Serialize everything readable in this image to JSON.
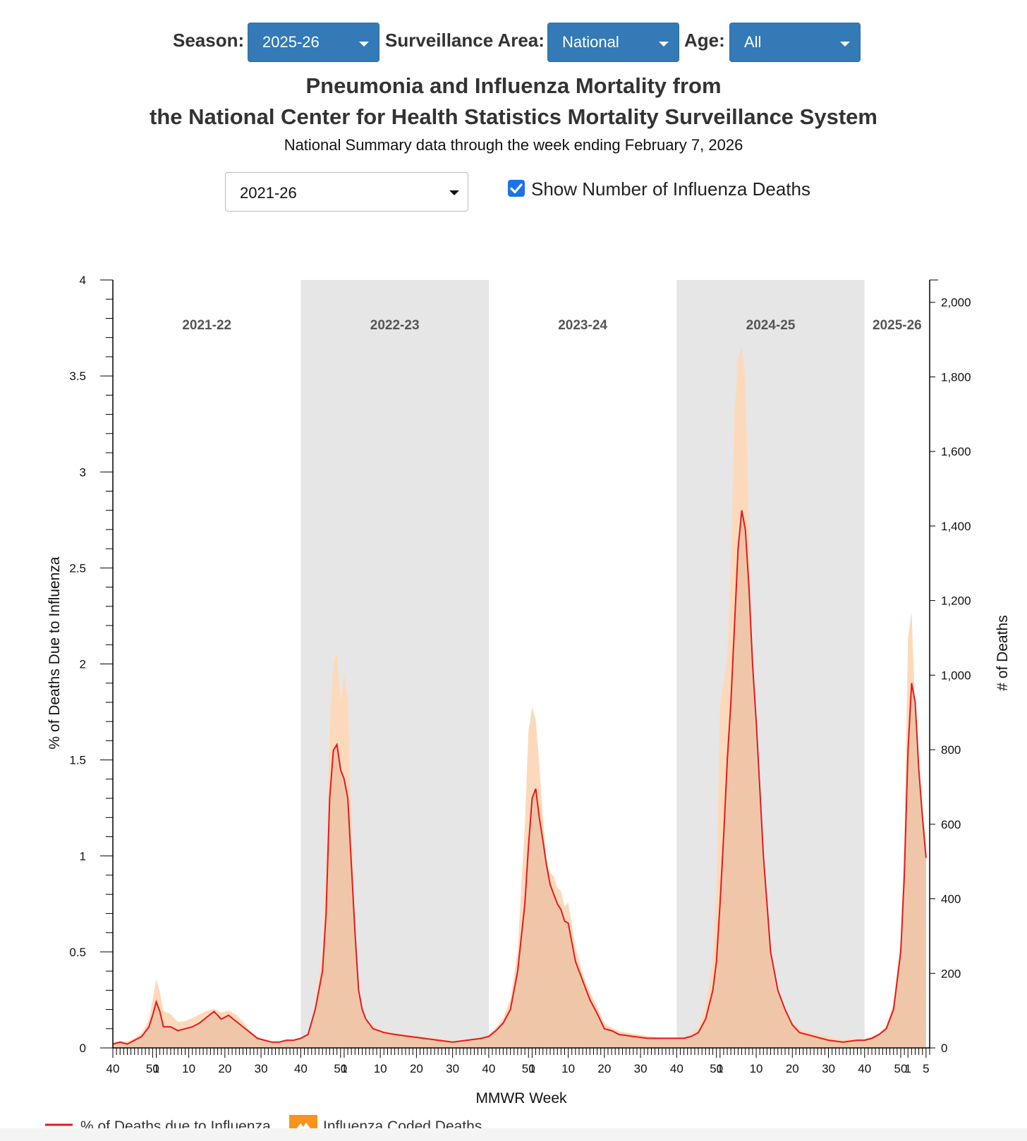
{
  "filters": {
    "season_label": "Season:",
    "season_value": "2025-26",
    "area_label": "Surveillance Area:",
    "area_value": "National",
    "age_label": "Age:",
    "age_value": "All"
  },
  "title_line1": "Pneumonia and Influenza Mortality from",
  "title_line2": "the National Center for Health Statistics Mortality Surveillance System",
  "subtitle": "National Summary data through the week ending February 7, 2026",
  "range_selector": "2021-26",
  "show_deaths_label": "Show Number of Influenza Deaths",
  "colors": {
    "dropdown": "#337ab7",
    "line": "#e41a1c",
    "area": "#fdd9bb",
    "area_dark": "#e6b79a",
    "shade": "#e6e6e6",
    "legend_area_icon": "#f7941d"
  },
  "chart_data": {
    "type": "line",
    "xlabel": "MMWR Week",
    "ylabel": "% of Deaths Due to Influenza",
    "y2label": "# of Deaths",
    "ylim": [
      0,
      4
    ],
    "y2lim": [
      0,
      2060
    ],
    "yticks": [
      "0",
      "0.5",
      "1",
      "1.5",
      "2",
      "2.5",
      "3",
      "3.5",
      "4"
    ],
    "y2ticks": [
      "0",
      "200",
      "400",
      "600",
      "800",
      "1,000",
      "1,200",
      "1,400",
      "1,600",
      "1,800",
      "2,000"
    ],
    "x_range_weeks": [
      0,
      226
    ],
    "seasons": [
      {
        "label": "2021-22",
        "start_week": 0,
        "end_week": 52,
        "shaded": false
      },
      {
        "label": "2022-23",
        "start_week": 52,
        "end_week": 104,
        "shaded": true
      },
      {
        "label": "2023-24",
        "start_week": 104,
        "end_week": 156,
        "shaded": false
      },
      {
        "label": "2024-25",
        "start_week": 156,
        "end_week": 208,
        "shaded": true
      },
      {
        "label": "2025-26",
        "start_week": 208,
        "end_week": 226,
        "shaded": false
      }
    ],
    "xticks": [
      {
        "w": 0,
        "label": "40"
      },
      {
        "w": 11,
        "label": "50"
      },
      {
        "w": 12,
        "label": "1"
      },
      {
        "w": 21,
        "label": "10"
      },
      {
        "w": 31,
        "label": "20"
      },
      {
        "w": 41,
        "label": "30"
      },
      {
        "w": 52,
        "label": "40"
      },
      {
        "w": 63,
        "label": "50"
      },
      {
        "w": 64,
        "label": "1"
      },
      {
        "w": 74,
        "label": "10"
      },
      {
        "w": 84,
        "label": "20"
      },
      {
        "w": 94,
        "label": "30"
      },
      {
        "w": 104,
        "label": "40"
      },
      {
        "w": 115,
        "label": "50"
      },
      {
        "w": 116,
        "label": "1"
      },
      {
        "w": 126,
        "label": "10"
      },
      {
        "w": 136,
        "label": "20"
      },
      {
        "w": 146,
        "label": "30"
      },
      {
        "w": 156,
        "label": "40"
      },
      {
        "w": 167,
        "label": "50"
      },
      {
        "w": 168,
        "label": "1"
      },
      {
        "w": 178,
        "label": "10"
      },
      {
        "w": 188,
        "label": "20"
      },
      {
        "w": 198,
        "label": "30"
      },
      {
        "w": 208,
        "label": "40"
      },
      {
        "w": 218,
        "label": "50"
      },
      {
        "w": 220,
        "label": "1"
      },
      {
        "w": 225,
        "label": "5"
      }
    ],
    "series": [
      {
        "name": "% of Deaths due to Influenza",
        "axis": "left",
        "points": [
          [
            0,
            0.02
          ],
          [
            2,
            0.03
          ],
          [
            4,
            0.02
          ],
          [
            6,
            0.04
          ],
          [
            8,
            0.06
          ],
          [
            10,
            0.11
          ],
          [
            11,
            0.17
          ],
          [
            12,
            0.24
          ],
          [
            13,
            0.19
          ],
          [
            14,
            0.11
          ],
          [
            16,
            0.11
          ],
          [
            18,
            0.09
          ],
          [
            20,
            0.1
          ],
          [
            22,
            0.11
          ],
          [
            24,
            0.13
          ],
          [
            26,
            0.16
          ],
          [
            28,
            0.19
          ],
          [
            30,
            0.15
          ],
          [
            32,
            0.17
          ],
          [
            34,
            0.14
          ],
          [
            36,
            0.11
          ],
          [
            38,
            0.08
          ],
          [
            40,
            0.05
          ],
          [
            42,
            0.04
          ],
          [
            44,
            0.03
          ],
          [
            46,
            0.03
          ],
          [
            48,
            0.04
          ],
          [
            50,
            0.04
          ],
          [
            52,
            0.05
          ],
          [
            54,
            0.07
          ],
          [
            56,
            0.2
          ],
          [
            58,
            0.4
          ],
          [
            59,
            0.7
          ],
          [
            60,
            1.3
          ],
          [
            61,
            1.55
          ],
          [
            62,
            1.58
          ],
          [
            63,
            1.45
          ],
          [
            64,
            1.4
          ],
          [
            65,
            1.3
          ],
          [
            66,
            0.95
          ],
          [
            67,
            0.6
          ],
          [
            68,
            0.3
          ],
          [
            69,
            0.2
          ],
          [
            70,
            0.15
          ],
          [
            72,
            0.1
          ],
          [
            75,
            0.08
          ],
          [
            78,
            0.07
          ],
          [
            82,
            0.06
          ],
          [
            86,
            0.05
          ],
          [
            90,
            0.04
          ],
          [
            94,
            0.03
          ],
          [
            98,
            0.04
          ],
          [
            102,
            0.05
          ],
          [
            104,
            0.06
          ],
          [
            106,
            0.09
          ],
          [
            108,
            0.13
          ],
          [
            110,
            0.2
          ],
          [
            112,
            0.4
          ],
          [
            114,
            0.75
          ],
          [
            115,
            1.05
          ],
          [
            116,
            1.3
          ],
          [
            117,
            1.35
          ],
          [
            118,
            1.2
          ],
          [
            119,
            1.08
          ],
          [
            120,
            0.95
          ],
          [
            121,
            0.85
          ],
          [
            122,
            0.8
          ],
          [
            123,
            0.75
          ],
          [
            124,
            0.72
          ],
          [
            125,
            0.66
          ],
          [
            126,
            0.65
          ],
          [
            128,
            0.45
          ],
          [
            130,
            0.35
          ],
          [
            132,
            0.25
          ],
          [
            134,
            0.18
          ],
          [
            136,
            0.1
          ],
          [
            138,
            0.09
          ],
          [
            140,
            0.07
          ],
          [
            144,
            0.06
          ],
          [
            148,
            0.05
          ],
          [
            152,
            0.05
          ],
          [
            156,
            0.05
          ],
          [
            158,
            0.05
          ],
          [
            160,
            0.06
          ],
          [
            162,
            0.08
          ],
          [
            164,
            0.15
          ],
          [
            166,
            0.3
          ],
          [
            167,
            0.45
          ],
          [
            168,
            0.75
          ],
          [
            169,
            1.1
          ],
          [
            170,
            1.5
          ],
          [
            171,
            1.8
          ],
          [
            172,
            2.2
          ],
          [
            173,
            2.6
          ],
          [
            174,
            2.8
          ],
          [
            175,
            2.7
          ],
          [
            176,
            2.4
          ],
          [
            177,
            2.0
          ],
          [
            178,
            1.7
          ],
          [
            179,
            1.35
          ],
          [
            180,
            1.0
          ],
          [
            181,
            0.75
          ],
          [
            182,
            0.5
          ],
          [
            184,
            0.3
          ],
          [
            186,
            0.2
          ],
          [
            188,
            0.12
          ],
          [
            190,
            0.08
          ],
          [
            194,
            0.06
          ],
          [
            198,
            0.04
          ],
          [
            202,
            0.03
          ],
          [
            206,
            0.04
          ],
          [
            208,
            0.04
          ],
          [
            210,
            0.05
          ],
          [
            212,
            0.07
          ],
          [
            214,
            0.1
          ],
          [
            216,
            0.2
          ],
          [
            218,
            0.5
          ],
          [
            219,
            0.9
          ],
          [
            220,
            1.55
          ],
          [
            221,
            1.9
          ],
          [
            222,
            1.8
          ],
          [
            223,
            1.45
          ],
          [
            224,
            1.2
          ],
          [
            225,
            0.99
          ]
        ]
      },
      {
        "name": "Influenza Coded Deaths",
        "axis": "right",
        "points": [
          [
            0,
            15
          ],
          [
            2,
            18
          ],
          [
            4,
            17
          ],
          [
            6,
            25
          ],
          [
            8,
            40
          ],
          [
            10,
            75
          ],
          [
            11,
            130
          ],
          [
            12,
            185
          ],
          [
            13,
            150
          ],
          [
            14,
            100
          ],
          [
            16,
            90
          ],
          [
            18,
            70
          ],
          [
            20,
            72
          ],
          [
            22,
            80
          ],
          [
            24,
            90
          ],
          [
            26,
            100
          ],
          [
            28,
            105
          ],
          [
            30,
            95
          ],
          [
            32,
            100
          ],
          [
            34,
            90
          ],
          [
            36,
            70
          ],
          [
            38,
            45
          ],
          [
            40,
            30
          ],
          [
            42,
            20
          ],
          [
            44,
            15
          ],
          [
            46,
            15
          ],
          [
            48,
            20
          ],
          [
            50,
            22
          ],
          [
            52,
            28
          ],
          [
            54,
            35
          ],
          [
            56,
            120
          ],
          [
            58,
            260
          ],
          [
            59,
            500
          ],
          [
            60,
            860
          ],
          [
            61,
            1030
          ],
          [
            62,
            1060
          ],
          [
            63,
            930
          ],
          [
            64,
            1000
          ],
          [
            65,
            940
          ],
          [
            66,
            600
          ],
          [
            67,
            350
          ],
          [
            68,
            140
          ],
          [
            69,
            110
          ],
          [
            70,
            80
          ],
          [
            72,
            60
          ],
          [
            75,
            45
          ],
          [
            78,
            40
          ],
          [
            82,
            35
          ],
          [
            86,
            30
          ],
          [
            90,
            25
          ],
          [
            94,
            18
          ],
          [
            98,
            22
          ],
          [
            102,
            28
          ],
          [
            104,
            35
          ],
          [
            106,
            55
          ],
          [
            108,
            80
          ],
          [
            110,
            130
          ],
          [
            112,
            260
          ],
          [
            114,
            600
          ],
          [
            115,
            850
          ],
          [
            116,
            915
          ],
          [
            117,
            880
          ],
          [
            118,
            760
          ],
          [
            119,
            620
          ],
          [
            120,
            500
          ],
          [
            121,
            470
          ],
          [
            122,
            460
          ],
          [
            123,
            430
          ],
          [
            124,
            420
          ],
          [
            125,
            380
          ],
          [
            126,
            390
          ],
          [
            128,
            270
          ],
          [
            130,
            200
          ],
          [
            132,
            150
          ],
          [
            134,
            110
          ],
          [
            136,
            65
          ],
          [
            138,
            55
          ],
          [
            140,
            45
          ],
          [
            144,
            38
          ],
          [
            148,
            32
          ],
          [
            152,
            28
          ],
          [
            156,
            28
          ],
          [
            158,
            30
          ],
          [
            160,
            38
          ],
          [
            162,
            55
          ],
          [
            164,
            110
          ],
          [
            166,
            240
          ],
          [
            167,
            420
          ],
          [
            168,
            920
          ],
          [
            169,
            980
          ],
          [
            170,
            1050
          ],
          [
            171,
            1300
          ],
          [
            172,
            1700
          ],
          [
            173,
            1850
          ],
          [
            174,
            1880
          ],
          [
            175,
            1790
          ],
          [
            176,
            1400
          ],
          [
            177,
            1000
          ],
          [
            178,
            780
          ],
          [
            179,
            620
          ],
          [
            180,
            480
          ],
          [
            181,
            350
          ],
          [
            182,
            250
          ],
          [
            184,
            150
          ],
          [
            186,
            100
          ],
          [
            188,
            70
          ],
          [
            190,
            50
          ],
          [
            194,
            40
          ],
          [
            198,
            30
          ],
          [
            202,
            22
          ],
          [
            206,
            25
          ],
          [
            208,
            25
          ],
          [
            210,
            30
          ],
          [
            212,
            40
          ],
          [
            214,
            60
          ],
          [
            216,
            120
          ],
          [
            218,
            290
          ],
          [
            219,
            560
          ],
          [
            220,
            1100
          ],
          [
            221,
            1170
          ],
          [
            222,
            900
          ],
          [
            223,
            770
          ],
          [
            224,
            650
          ],
          [
            225,
            540
          ]
        ]
      }
    ]
  },
  "legend": {
    "line_label": "% of Deaths due to Influenza",
    "area_label": "Influenza Coded Deaths"
  }
}
